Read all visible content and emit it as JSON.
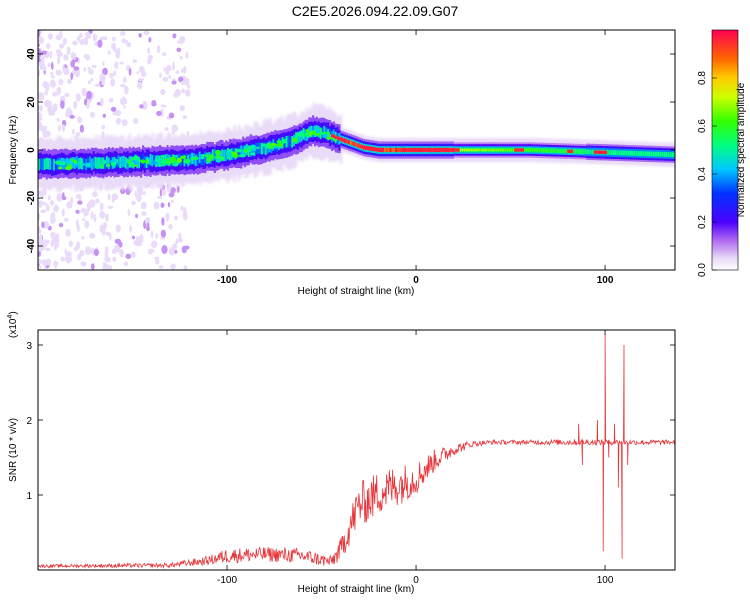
{
  "title": "C2E5.2026.094.22.09.G07",
  "colors": {
    "snr_line": "#e8353a",
    "frame": "#000000"
  },
  "chart_data": [
    {
      "type": "heatmap",
      "name": "spectrogram",
      "xlabel": "Height of straight line (km)",
      "ylabel": "Frequency (Hz)",
      "xlim": [
        -200,
        137
      ],
      "ylim": [
        -50,
        50
      ],
      "xticks": [
        {
          "value": -100,
          "label": "-100"
        },
        {
          "value": 0,
          "label": "0"
        },
        {
          "value": 100,
          "label": "100"
        }
      ],
      "yticks": [
        {
          "value": -40,
          "label": "-40"
        },
        {
          "value": -20,
          "label": "-20"
        },
        {
          "value": 0,
          "label": "0"
        },
        {
          "value": 20,
          "label": "20"
        },
        {
          "value": 40,
          "label": "40"
        }
      ],
      "colorbar": {
        "label": "Normalized spectral amplitude",
        "range": [
          0,
          1
        ],
        "ticks": [
          {
            "value": 0.0,
            "label": "0.0"
          },
          {
            "value": 0.2,
            "label": "0.2"
          },
          {
            "value": 0.4,
            "label": "0.4"
          },
          {
            "value": 0.6,
            "label": "0.6"
          },
          {
            "value": 0.8,
            "label": "0.8"
          }
        ]
      },
      "ridge_center_hz": {
        "x": [
          -200,
          -150,
          -120,
          -100,
          -80,
          -65,
          -55,
          -48,
          -42,
          -35,
          -28,
          -20,
          -10,
          0,
          20,
          40,
          60,
          80,
          100,
          137
        ],
        "y": [
          -6,
          -5,
          -4,
          -2,
          1,
          4,
          8,
          7,
          5,
          3,
          1,
          0,
          0,
          0,
          0,
          0,
          0,
          -0.5,
          -1,
          -2
        ]
      }
    },
    {
      "type": "line",
      "name": "snr",
      "xlabel": "Height of straight line (km)",
      "ylabel": "SNR (10 * v/v)",
      "multiplier": "(x10^4)",
      "multiplier_base": "(x10",
      "multiplier_exp": "4",
      "multiplier_close": ")",
      "xlim": [
        -200,
        137
      ],
      "ylim": [
        0,
        3.2
      ],
      "xticks": [
        {
          "value": -100,
          "label": "-100"
        },
        {
          "value": 0,
          "label": "0"
        },
        {
          "value": 100,
          "label": "100"
        }
      ],
      "yticks": [
        {
          "value": 1,
          "label": "1"
        },
        {
          "value": 2,
          "label": "2"
        },
        {
          "value": 3,
          "label": "3"
        }
      ],
      "trend": {
        "x": [
          -200,
          -130,
          -110,
          -100,
          -80,
          -60,
          -45,
          -40,
          -35,
          -30,
          -25,
          -20,
          -10,
          0,
          10,
          20,
          30,
          40,
          60,
          80,
          137
        ],
        "y": [
          0.05,
          0.06,
          0.12,
          0.18,
          0.2,
          0.18,
          0.1,
          0.25,
          0.55,
          0.85,
          0.9,
          1.0,
          1.1,
          1.2,
          1.45,
          1.6,
          1.68,
          1.7,
          1.7,
          1.7,
          1.7
        ],
        "noise": [
          0.02,
          0.03,
          0.06,
          0.1,
          0.1,
          0.1,
          0.08,
          0.15,
          0.25,
          0.3,
          0.3,
          0.3,
          0.28,
          0.22,
          0.15,
          0.08,
          0.04,
          0.03,
          0.03,
          0.04,
          0.03
        ]
      },
      "spikes": [
        {
          "x": 86,
          "y": 1.95
        },
        {
          "x": 88,
          "y": 1.4
        },
        {
          "x": 96,
          "y": 2.0
        },
        {
          "x": 99,
          "y": 0.25
        },
        {
          "x": 100,
          "y": 3.15
        },
        {
          "x": 102,
          "y": 1.5
        },
        {
          "x": 105,
          "y": 1.95
        },
        {
          "x": 107,
          "y": 1.1
        },
        {
          "x": 109,
          "y": 0.15
        },
        {
          "x": 110,
          "y": 3.0
        },
        {
          "x": 112,
          "y": 1.4
        }
      ]
    }
  ]
}
